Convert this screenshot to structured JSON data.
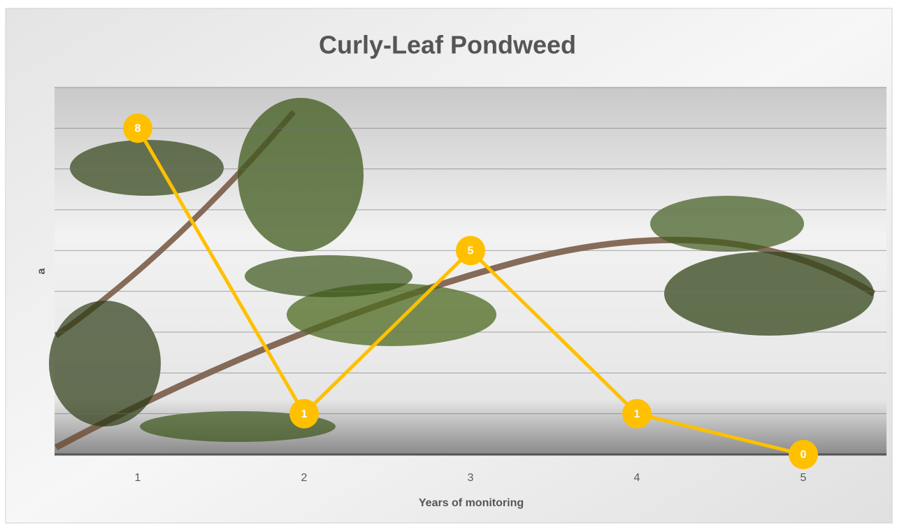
{
  "chart_data": {
    "type": "line",
    "title": "Curly-Leaf Pondweed",
    "x_label": "Years of monitoring",
    "y_label": "a",
    "categories": [
      "1",
      "2",
      "3",
      "4",
      "5"
    ],
    "series": [
      {
        "name": "a",
        "color": "#ffc000",
        "values": [
          8,
          1,
          5,
          1,
          0
        ]
      }
    ],
    "ylim": [
      0,
      9
    ],
    "yticks": [
      0,
      1,
      2,
      3,
      4,
      5,
      6,
      7,
      8,
      9
    ],
    "grid": true
  }
}
